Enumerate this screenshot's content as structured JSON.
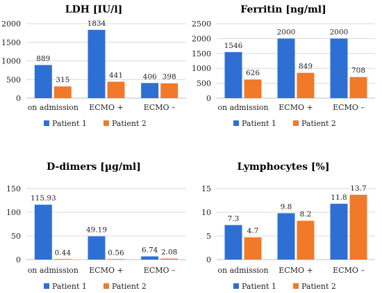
{
  "colors": {
    "patient1": "#2e6fd4",
    "patient2": "#f07a2a"
  },
  "chart_data": [
    {
      "type": "bar",
      "title": "LDH [IU/l]",
      "categories": [
        "on admission",
        "ECMO +",
        "ECMO –"
      ],
      "ylim": [
        0,
        2000
      ],
      "yticks": [
        "0",
        "500",
        "1000",
        "1500",
        "2000"
      ],
      "ytick_values": [
        0,
        500,
        1000,
        1500,
        2000
      ],
      "grid": true,
      "legend": "bottom",
      "series": [
        {
          "name": "Patient 1",
          "values": [
            889,
            1834,
            406
          ],
          "labels": [
            "889",
            "1834",
            "406"
          ]
        },
        {
          "name": "Patient 2",
          "values": [
            315,
            441,
            398
          ],
          "labels": [
            "315",
            "441",
            "398"
          ]
        }
      ]
    },
    {
      "type": "bar",
      "title": "Ferritin [ng/ml]",
      "categories": [
        "on admission",
        "ECMO +",
        "ECMO –"
      ],
      "ylim": [
        0,
        2500
      ],
      "yticks": [
        "0",
        "500",
        "1000",
        "1500",
        "2000",
        "2500"
      ],
      "ytick_values": [
        0,
        500,
        1000,
        1500,
        2000,
        2500
      ],
      "grid": true,
      "legend": "bottom",
      "series": [
        {
          "name": "Patient 1",
          "values": [
            1546,
            2000,
            2000
          ],
          "labels": [
            "1546",
            "2000",
            "2000"
          ]
        },
        {
          "name": "Patient 2",
          "values": [
            626,
            849,
            708
          ],
          "labels": [
            "626",
            "849",
            "708"
          ]
        }
      ]
    },
    {
      "type": "bar",
      "title": "D-dimers [µg/ml]",
      "categories": [
        "on admission",
        "ECMO +",
        "ECMO –"
      ],
      "ylim": [
        0,
        150
      ],
      "yticks": [
        "0",
        "50",
        "100",
        "150"
      ],
      "ytick_values": [
        0,
        50,
        100,
        150
      ],
      "grid": true,
      "legend": "bottom",
      "series": [
        {
          "name": "Patient 1",
          "values": [
            115.93,
            49.19,
            6.74
          ],
          "labels": [
            "115.93",
            "49.19",
            "6.74"
          ]
        },
        {
          "name": "Patient 2",
          "values": [
            0.44,
            0.56,
            2.08
          ],
          "labels": [
            "0.44",
            "0.56",
            "2.08"
          ]
        }
      ]
    },
    {
      "type": "bar",
      "title": "Lymphocytes [%]",
      "categories": [
        "on admission",
        "ECMO +",
        "ECMO –"
      ],
      "ylim": [
        0,
        15
      ],
      "yticks": [
        "0",
        "5",
        "10",
        "15"
      ],
      "ytick_values": [
        0,
        5,
        10,
        15
      ],
      "grid": true,
      "legend": "bottom",
      "series": [
        {
          "name": "Patient 1",
          "values": [
            7.3,
            9.8,
            11.8
          ],
          "labels": [
            "7.3",
            "9.8",
            "11.8"
          ]
        },
        {
          "name": "Patient 2",
          "values": [
            4.7,
            8.2,
            13.7
          ],
          "labels": [
            "4.7",
            "8.2",
            "13.7"
          ]
        }
      ]
    }
  ]
}
